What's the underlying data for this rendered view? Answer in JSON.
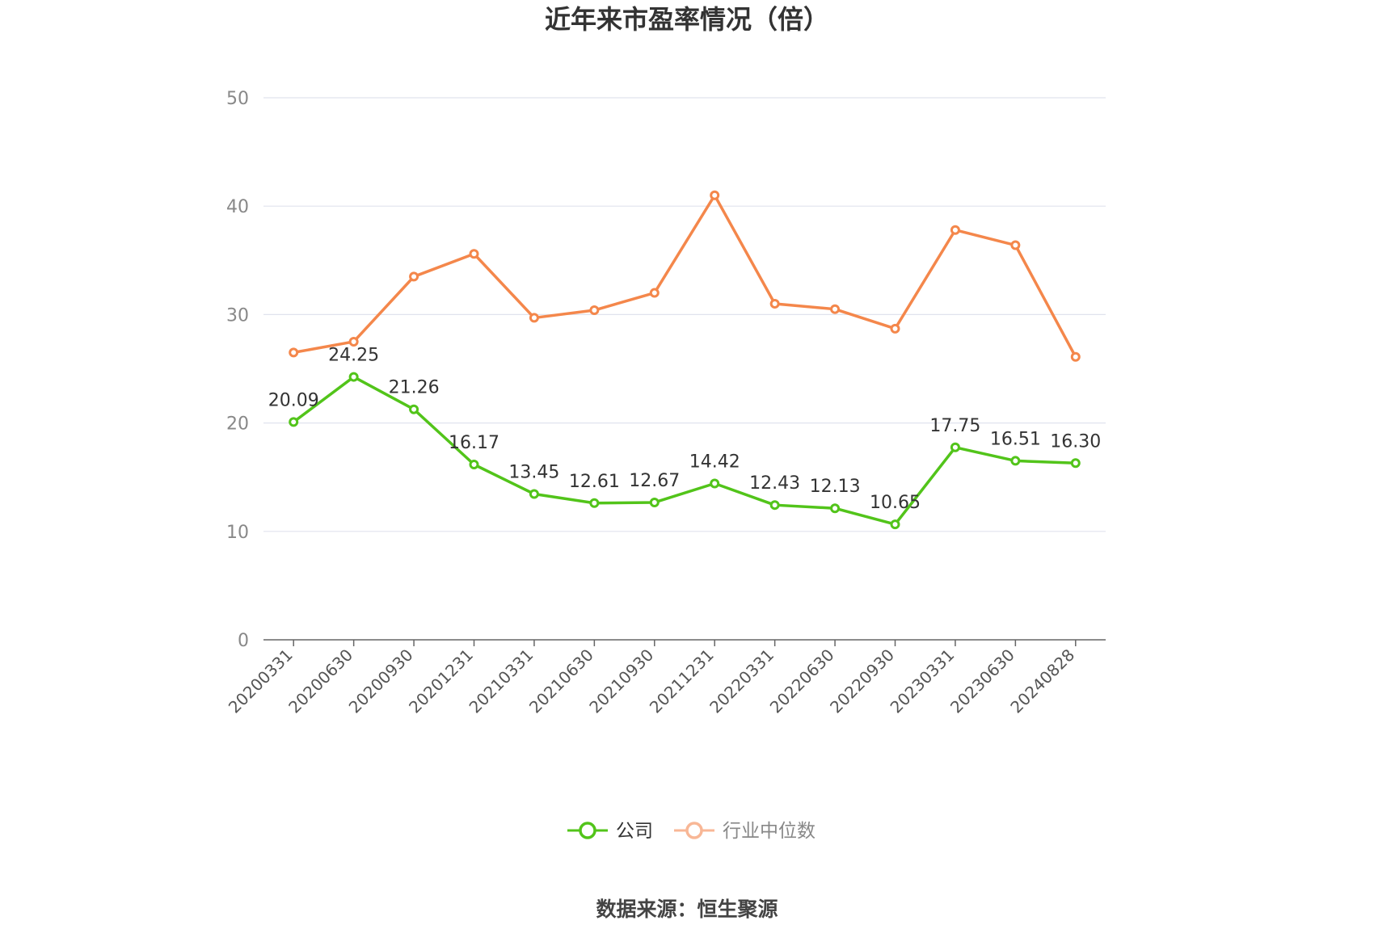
{
  "chart_data": {
    "type": "line",
    "title": "近年来市盈率情况（倍）",
    "categories": [
      "20200331",
      "20200630",
      "20200930",
      "20201231",
      "20210331",
      "20210630",
      "20210930",
      "20211231",
      "20220331",
      "20220630",
      "20220930",
      "20230331",
      "20230630",
      "20240828"
    ],
    "series": [
      {
        "name": "公司",
        "color": "#52c41a",
        "values": [
          20.09,
          24.25,
          21.26,
          16.17,
          13.45,
          12.61,
          12.67,
          14.42,
          12.43,
          12.13,
          10.65,
          17.75,
          16.51,
          16.3
        ],
        "labels": [
          "20.09",
          "24.25",
          "21.26",
          "16.17",
          "13.45",
          "12.61",
          "12.67",
          "14.42",
          "12.43",
          "12.13",
          "10.65",
          "17.75",
          "16.51",
          "16.30"
        ],
        "show_labels": true
      },
      {
        "name": "行业中位数",
        "color": "#f4874b",
        "values": [
          26.5,
          27.5,
          33.5,
          35.6,
          29.7,
          30.4,
          32.0,
          41.0,
          31.0,
          30.5,
          28.7,
          37.8,
          36.4,
          26.1
        ],
        "show_labels": false
      }
    ],
    "yticks": [
      "0",
      "10",
      "20",
      "30",
      "40",
      "50"
    ],
    "ylim": [
      0,
      50
    ],
    "grid": true,
    "legend_position": "bottom"
  },
  "legend": {
    "company_label": "公司",
    "industry_label": "行业中位数",
    "industry_inactive_color": "#f8b796"
  },
  "footer": {
    "source": "数据来源：恒生聚源"
  }
}
